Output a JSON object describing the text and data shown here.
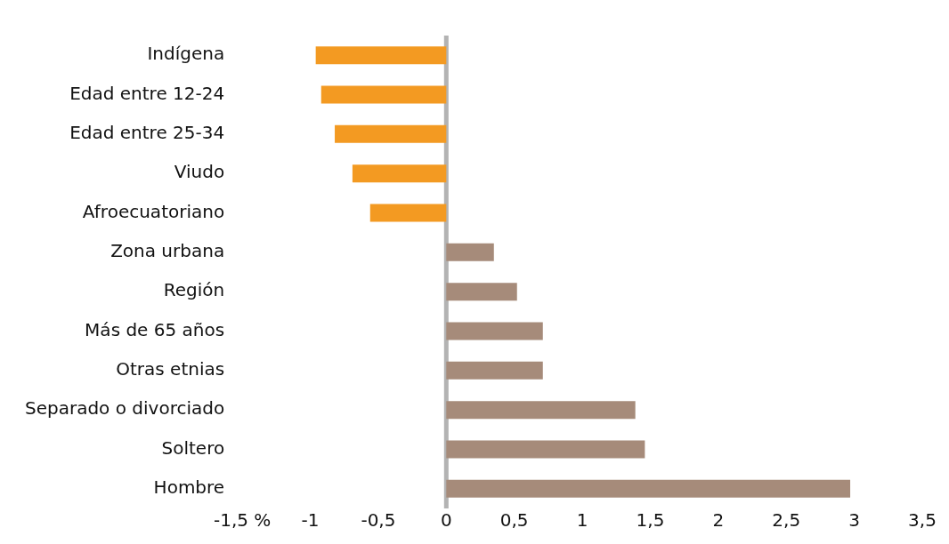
{
  "chart_data": {
    "type": "bar",
    "orientation": "horizontal",
    "categories": [
      "Indígena",
      "Edad entre 12-24",
      "Edad entre 25-34",
      "Viudo",
      "Afroecuatoriano",
      "Zona urbana",
      "Región",
      "Más de 65 años",
      "Otras etnias",
      "Separado o divorciado",
      "Soltero",
      "Hombre"
    ],
    "values": [
      -0.96,
      -0.92,
      -0.82,
      -0.69,
      -0.56,
      0.35,
      0.52,
      0.71,
      0.71,
      1.39,
      1.46,
      2.97
    ],
    "colors": [
      "#f39a22",
      "#f39a22",
      "#f39a22",
      "#f39a22",
      "#f39a22",
      "#a68b7a",
      "#a68b7a",
      "#a68b7a",
      "#a68b7a",
      "#a68b7a",
      "#a68b7a",
      "#a68b7a"
    ],
    "xlim": [
      -1.5,
      3.5
    ],
    "xticks": [
      {
        "value": -1.5,
        "label": "-1,5 %"
      },
      -1,
      {
        "value": -0.5,
        "label": "-0,5"
      },
      0,
      {
        "value": 0.5,
        "label": "0,5"
      },
      1,
      {
        "value": 1.5,
        "label": "1,5"
      },
      2,
      {
        "value": 2.5,
        "label": "2,5"
      },
      3,
      {
        "value": 3.5,
        "label": "3,5"
      }
    ],
    "grid": false,
    "legend": false,
    "ref_lines": [
      {
        "axis": "x",
        "value": 0,
        "color": "#b3b3b3"
      }
    ]
  }
}
